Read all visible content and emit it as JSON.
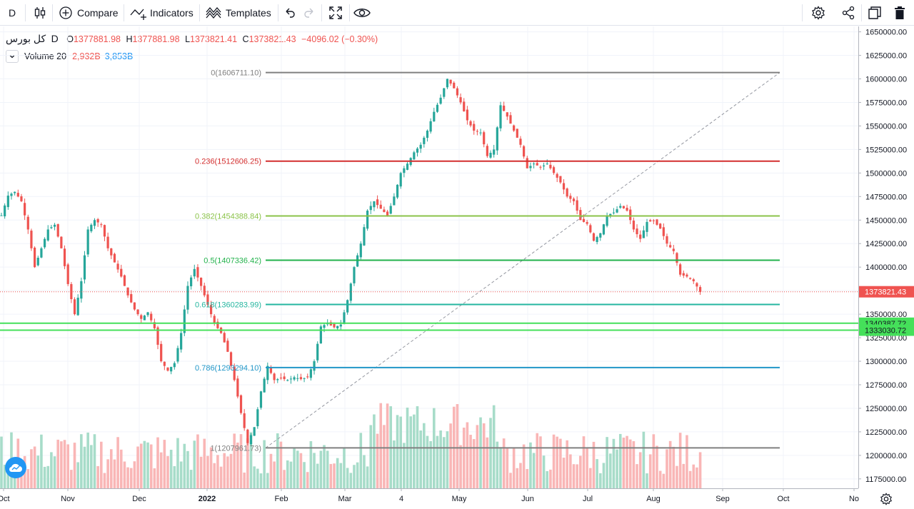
{
  "toolbar": {
    "interval": "D",
    "compare_label": "Compare",
    "indicators_label": "Indicators",
    "templates_label": "Templates"
  },
  "legend": {
    "symbol": "کل بورس",
    "interval": "D",
    "o_label": "O",
    "o": "1377881.98",
    "h_label": "H",
    "h": "1377881.98",
    "l_label": "L",
    "l": "1373821.41",
    "c_label": "C",
    "c": "1373821.43",
    "change": "−4096.02 (−0.30%)",
    "volume_name": "Volume 20",
    "volume_value": "2,932B",
    "volume_ma": "3,853B"
  },
  "colors": {
    "up": "#26a69a",
    "down": "#ef5350",
    "vol_up": "#a7dcc9",
    "vol_down": "#f9b6b6",
    "fib0": "#808080",
    "fib236": "#d32f2f",
    "fib382": "#8bc34a",
    "fib5": "#22b24c",
    "fib618": "#26b6a0",
    "fib786": "#2196c8",
    "fib1": "#808080",
    "hline": "#45e05a",
    "price_tag": "#ef5350",
    "hline_tag": "#45e05a"
  },
  "chart_data": {
    "type": "candlestick",
    "title": "کل بورس",
    "interval": "D",
    "y_axis": {
      "range": [
        1165000,
        1655000
      ],
      "ticks": [
        1175000,
        1200000,
        1225000,
        1250000,
        1275000,
        1300000,
        1325000,
        1350000,
        1375000,
        1400000,
        1425000,
        1450000,
        1475000,
        1500000,
        1525000,
        1550000,
        1575000,
        1600000,
        1625000,
        1650000
      ],
      "tick_labels": [
        "1175000.00",
        "1200000.00",
        "1225000.00",
        "1250000.00",
        "1275000.00",
        "1300000.00",
        "1325000.00",
        "1350000.00",
        "1375000.00",
        "1400000.00",
        "1425000.00",
        "1450000.00",
        "1475000.00",
        "1500000.00",
        "1525000.00",
        "1550000.00",
        "1575000.00",
        "1600000.00",
        "1625000.00",
        "1650000.00"
      ]
    },
    "x_axis": {
      "labels": [
        "Oct",
        "Nov",
        "Dec",
        "2022",
        "Feb",
        "Mar",
        "4",
        "May",
        "Jun",
        "Jul",
        "Aug",
        "Sep",
        "Oct",
        "No"
      ]
    },
    "fib_retracement": [
      {
        "level": "0",
        "price": 1606711.1,
        "label": "0(1606711.10)",
        "color_key": "fib0"
      },
      {
        "level": "0.236",
        "price": 1512606.25,
        "label": "0.236(1512606.25)",
        "color_key": "fib236"
      },
      {
        "level": "0.382",
        "price": 1454388.84,
        "label": "0.382(1454388.84)",
        "color_key": "fib382"
      },
      {
        "level": "0.5",
        "price": 1407336.42,
        "label": "0.5(1407336.42)",
        "color_key": "fib5"
      },
      {
        "level": "0.618",
        "price": 1360283.99,
        "label": "0.618(1360283.99)",
        "color_key": "fib618"
      },
      {
        "level": "0.786",
        "price": 1293294.1,
        "label": "0.786(1293294.10)",
        "color_key": "fib786"
      },
      {
        "level": "1",
        "price": 1207961.73,
        "label": "1(1207961.73)",
        "color_key": "fib1"
      }
    ],
    "horizontal_lines": [
      {
        "price": 1340387.72,
        "label": "1340387.72"
      },
      {
        "price": 1333030.72,
        "label": "1333030.72"
      }
    ],
    "last_price": {
      "price": 1373821.43,
      "label": "1373821.43"
    },
    "close_path": [
      [
        0,
        1455000
      ],
      [
        2,
        1476000
      ],
      [
        4,
        1480000
      ],
      [
        6,
        1470000
      ],
      [
        8,
        1440000
      ],
      [
        10,
        1400000
      ],
      [
        12,
        1420000
      ],
      [
        14,
        1440000
      ],
      [
        16,
        1445000
      ],
      [
        18,
        1420000
      ],
      [
        20,
        1382000
      ],
      [
        22,
        1350000
      ],
      [
        24,
        1385000
      ],
      [
        26,
        1440000
      ],
      [
        28,
        1450000
      ],
      [
        30,
        1445000
      ],
      [
        32,
        1420000
      ],
      [
        34,
        1405000
      ],
      [
        36,
        1390000
      ],
      [
        38,
        1370000
      ],
      [
        40,
        1355000
      ],
      [
        42,
        1345000
      ],
      [
        44,
        1352000
      ],
      [
        46,
        1335000
      ],
      [
        48,
        1300000
      ],
      [
        50,
        1290000
      ],
      [
        52,
        1298000
      ],
      [
        54,
        1330000
      ],
      [
        56,
        1380000
      ],
      [
        58,
        1398000
      ],
      [
        60,
        1380000
      ],
      [
        62,
        1360000
      ],
      [
        64,
        1340000
      ],
      [
        66,
        1330000
      ],
      [
        68,
        1310000
      ],
      [
        70,
        1280000
      ],
      [
        72,
        1245000
      ],
      [
        74,
        1213000
      ],
      [
        76,
        1230000
      ],
      [
        78,
        1268000
      ],
      [
        80,
        1295000
      ],
      [
        82,
        1280000
      ],
      [
        84,
        1282000
      ],
      [
        86,
        1280000
      ],
      [
        88,
        1283000
      ],
      [
        90,
        1281000
      ],
      [
        92,
        1283000
      ],
      [
        94,
        1300000
      ],
      [
        96,
        1337000
      ],
      [
        98,
        1340000
      ],
      [
        100,
        1336000
      ],
      [
        102,
        1339000
      ],
      [
        104,
        1365000
      ],
      [
        106,
        1400000
      ],
      [
        108,
        1425000
      ],
      [
        110,
        1460000
      ],
      [
        112,
        1470000
      ],
      [
        114,
        1462000
      ],
      [
        116,
        1455000
      ],
      [
        118,
        1475000
      ],
      [
        120,
        1500000
      ],
      [
        122,
        1510000
      ],
      [
        124,
        1522000
      ],
      [
        126,
        1530000
      ],
      [
        128,
        1545000
      ],
      [
        130,
        1565000
      ],
      [
        132,
        1580000
      ],
      [
        134,
        1600000
      ],
      [
        136,
        1590000
      ],
      [
        138,
        1575000
      ],
      [
        140,
        1556000
      ],
      [
        142,
        1545000
      ],
      [
        144,
        1543000
      ],
      [
        146,
        1518000
      ],
      [
        148,
        1525000
      ],
      [
        150,
        1572000
      ],
      [
        152,
        1560000
      ],
      [
        154,
        1545000
      ],
      [
        156,
        1530000
      ],
      [
        158,
        1505000
      ],
      [
        160,
        1510000
      ],
      [
        162,
        1506000
      ],
      [
        164,
        1510000
      ],
      [
        166,
        1500000
      ],
      [
        168,
        1490000
      ],
      [
        170,
        1475000
      ],
      [
        172,
        1470000
      ],
      [
        174,
        1450000
      ],
      [
        176,
        1446000
      ],
      [
        178,
        1428000
      ],
      [
        180,
        1436000
      ],
      [
        182,
        1455000
      ],
      [
        184,
        1458000
      ],
      [
        186,
        1465000
      ],
      [
        188,
        1460000
      ],
      [
        190,
        1440000
      ],
      [
        192,
        1430000
      ],
      [
        194,
        1448000
      ],
      [
        196,
        1449000
      ],
      [
        198,
        1441000
      ],
      [
        200,
        1425000
      ],
      [
        202,
        1417000
      ],
      [
        204,
        1392000
      ],
      [
        206,
        1390000
      ],
      [
        208,
        1385000
      ],
      [
        210,
        1373821
      ]
    ],
    "x_range_bars": [
      0,
      266
    ]
  }
}
